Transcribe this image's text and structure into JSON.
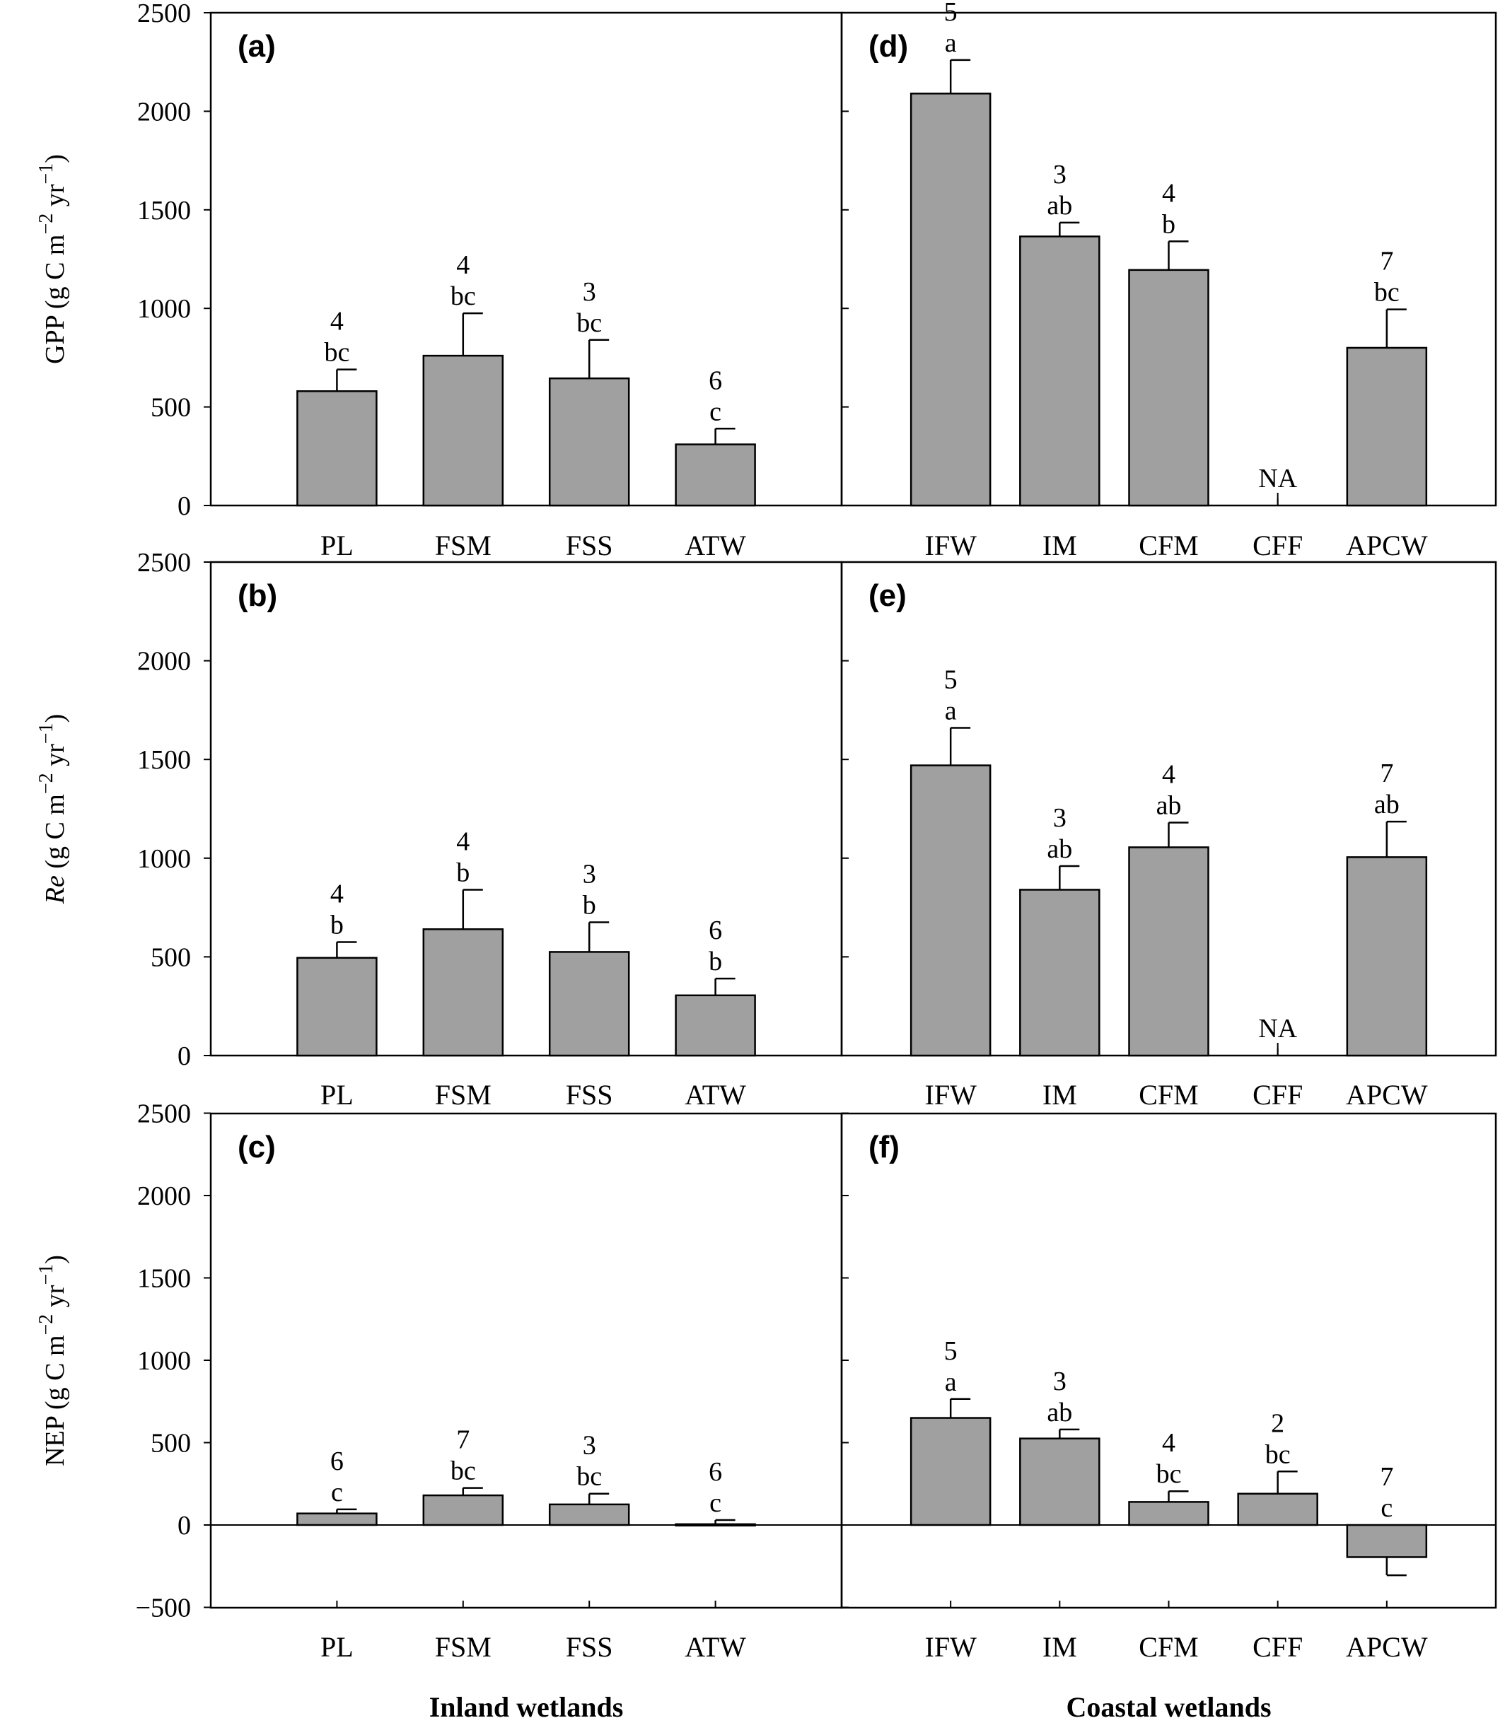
{
  "y_axis": {
    "ticks": [
      -500,
      0,
      500,
      1000,
      1500,
      2000,
      2500
    ],
    "rows": [
      {
        "label_pre": "GPP",
        "label_italic": "",
        "label_post": " (g C m",
        "sup1": "−2",
        "mid": " yr",
        "sup2": "−1",
        "end": ")"
      },
      {
        "label_pre": "",
        "label_italic": "Re",
        "label_post": " (g C m",
        "sup1": "−2",
        "mid": " yr",
        "sup2": "−1",
        "end": ")"
      },
      {
        "label_pre": "NEP",
        "label_italic": "",
        "label_post": " (g C m",
        "sup1": "−2",
        "mid": " yr",
        "sup2": "−1",
        "end": ")"
      }
    ]
  },
  "group_labels": [
    "Inland wetlands",
    "Coastal wetlands"
  ],
  "chart_data": [
    {
      "panel": "(a)",
      "type": "bar",
      "ylabel": "GPP (g C m−2 yr−1)",
      "ylim": [
        0,
        2500
      ],
      "categories": [
        "PL",
        "FSM",
        "FSS",
        "ATW"
      ],
      "values": [
        580,
        760,
        645,
        310
      ],
      "errors": [
        110,
        215,
        195,
        80
      ],
      "n": [
        "4",
        "4",
        "3",
        "6"
      ],
      "letters": [
        "bc",
        "bc",
        "bc",
        "c"
      ]
    },
    {
      "panel": "(d)",
      "type": "bar",
      "ylabel": "GPP (g C m−2 yr−1)",
      "ylim": [
        0,
        2500
      ],
      "categories": [
        "IFW",
        "IM",
        "CFM",
        "CFF",
        "APCW"
      ],
      "values": [
        2090,
        1365,
        1195,
        null,
        800
      ],
      "errors": [
        170,
        70,
        145,
        null,
        195
      ],
      "n": [
        "5",
        "3",
        "4",
        "NA",
        "7"
      ],
      "letters": [
        "a",
        "ab",
        "b",
        "",
        "bc"
      ]
    },
    {
      "panel": "(b)",
      "type": "bar",
      "ylabel": "Re (g C m−2 yr−1)",
      "ylim": [
        0,
        2500
      ],
      "categories": [
        "PL",
        "FSM",
        "FSS",
        "ATW"
      ],
      "values": [
        495,
        640,
        525,
        305
      ],
      "errors": [
        80,
        200,
        150,
        85
      ],
      "n": [
        "4",
        "4",
        "3",
        "6"
      ],
      "letters": [
        "b",
        "b",
        "b",
        "b"
      ]
    },
    {
      "panel": "(e)",
      "type": "bar",
      "ylabel": "Re (g C m−2 yr−1)",
      "ylim": [
        0,
        2500
      ],
      "categories": [
        "IFW",
        "IM",
        "CFM",
        "CFF",
        "APCW"
      ],
      "values": [
        1470,
        840,
        1055,
        null,
        1005
      ],
      "errors": [
        190,
        120,
        125,
        null,
        180
      ],
      "n": [
        "5",
        "3",
        "4",
        "NA",
        "7"
      ],
      "letters": [
        "a",
        "ab",
        "ab",
        "",
        "ab"
      ]
    },
    {
      "panel": "(c)",
      "type": "bar",
      "ylabel": "NEP (g C m−2 yr−1)",
      "ylim": [
        -500,
        2500
      ],
      "categories": [
        "PL",
        "FSM",
        "FSS",
        "ATW"
      ],
      "values": [
        70,
        180,
        125,
        5
      ],
      "errors": [
        25,
        45,
        65,
        25
      ],
      "n": [
        "6",
        "7",
        "3",
        "6"
      ],
      "letters": [
        "c",
        "bc",
        "bc",
        "c"
      ]
    },
    {
      "panel": "(f)",
      "type": "bar",
      "ylabel": "NEP (g C m−2 yr−1)",
      "ylim": [
        -500,
        2500
      ],
      "categories": [
        "IFW",
        "IM",
        "CFM",
        "CFF",
        "APCW"
      ],
      "values": [
        650,
        525,
        140,
        190,
        -195
      ],
      "errors": [
        115,
        55,
        65,
        135,
        110
      ],
      "n": [
        "5",
        "3",
        "4",
        "2",
        "7"
      ],
      "letters": [
        "a",
        "ab",
        "bc",
        "bc",
        "c"
      ]
    }
  ]
}
